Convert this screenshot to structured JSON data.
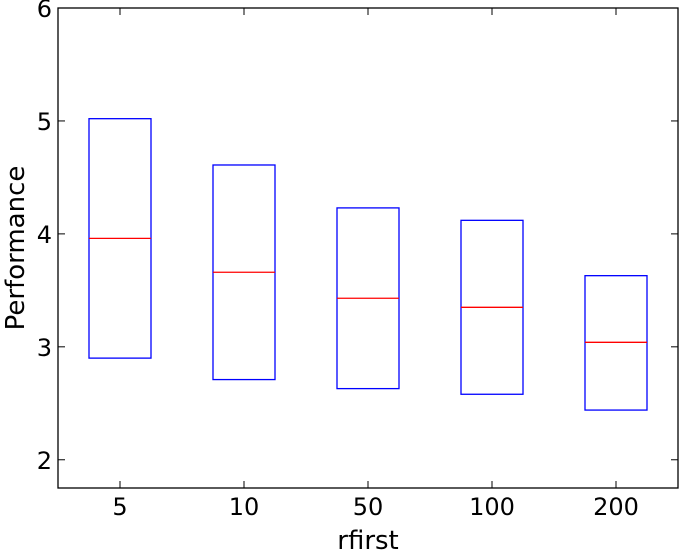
{
  "chart_data": {
    "type": "box",
    "xlabel": "rfirst",
    "ylabel": "Performance",
    "categories": [
      "5",
      "10",
      "50",
      "100",
      "200"
    ],
    "boxes": [
      {
        "category": "5",
        "q1": 2.9,
        "median": 3.96,
        "q3": 5.02
      },
      {
        "category": "10",
        "q1": 2.71,
        "median": 3.66,
        "q3": 4.61
      },
      {
        "category": "50",
        "q1": 2.63,
        "median": 3.43,
        "q3": 4.23
      },
      {
        "category": "100",
        "q1": 2.58,
        "median": 3.35,
        "q3": 4.12
      },
      {
        "category": "200",
        "q1": 2.44,
        "median": 3.04,
        "q3": 3.63
      }
    ],
    "ylim": [
      1.75,
      6.0
    ],
    "yticks": [
      2,
      3,
      4,
      5,
      6
    ],
    "ytick_labels": [
      "2",
      "3",
      "4",
      "5",
      "6"
    ],
    "grid": false,
    "box_color": "#0000ff",
    "median_color": "#ff0000"
  }
}
